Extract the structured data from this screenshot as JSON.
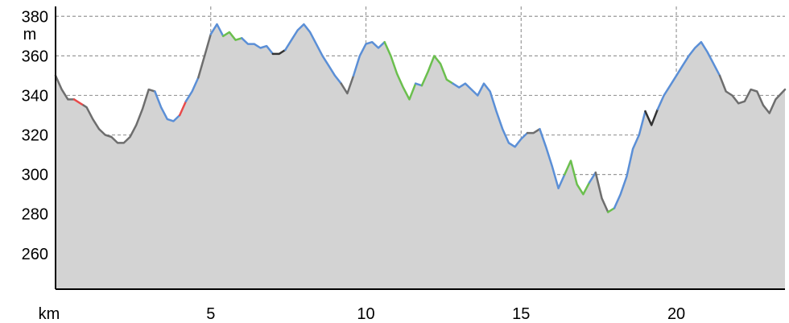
{
  "chart_data": {
    "type": "area",
    "title": "",
    "xlabel": "km",
    "ylabel": "m",
    "xlim": [
      0,
      23.5
    ],
    "ylim": [
      242,
      385
    ],
    "x_ticks": [
      5,
      10,
      15,
      20
    ],
    "x_tick_labels": [
      "5",
      "10",
      "15",
      "20"
    ],
    "y_ticks": [
      260,
      280,
      300,
      320,
      340,
      360,
      380
    ],
    "y_tick_labels": [
      "260",
      "280",
      "300",
      "320",
      "340",
      "360",
      "380"
    ],
    "grid": true,
    "colors": {
      "fill": "#d3d3d3",
      "default_line": "#6e6e6e",
      "blue": "#5b8fd6",
      "green": "#6bbf4e",
      "red": "#e84a4a",
      "dark": "#333333",
      "grid": "#999999"
    },
    "series": [
      {
        "values": [
          [
            0,
            350
          ],
          [
            0.2,
            343
          ],
          [
            0.4,
            338
          ],
          [
            0.6,
            338
          ],
          [
            0.8,
            336
          ],
          [
            1.0,
            334
          ],
          [
            1.2,
            328
          ],
          [
            1.4,
            323
          ],
          [
            1.6,
            320
          ],
          [
            1.8,
            319
          ],
          [
            2.0,
            316
          ],
          [
            2.2,
            316
          ],
          [
            2.4,
            319
          ],
          [
            2.6,
            325
          ],
          [
            2.8,
            333
          ],
          [
            3.0,
            343
          ],
          [
            3.2,
            342
          ],
          [
            3.4,
            334
          ],
          [
            3.6,
            328
          ],
          [
            3.8,
            327
          ],
          [
            4.0,
            330
          ],
          [
            4.2,
            337
          ],
          [
            4.4,
            342
          ],
          [
            4.6,
            349
          ],
          [
            4.8,
            360
          ],
          [
            5.0,
            371
          ],
          [
            5.2,
            376
          ],
          [
            5.4,
            370
          ],
          [
            5.6,
            372
          ],
          [
            5.8,
            368
          ],
          [
            6.0,
            369
          ],
          [
            6.2,
            366
          ],
          [
            6.4,
            366
          ],
          [
            6.6,
            364
          ],
          [
            6.8,
            365
          ],
          [
            7.0,
            361
          ],
          [
            7.2,
            361
          ],
          [
            7.4,
            363
          ],
          [
            7.6,
            368
          ],
          [
            7.8,
            373
          ],
          [
            8.0,
            376
          ],
          [
            8.2,
            372
          ],
          [
            8.4,
            366
          ],
          [
            8.6,
            360
          ],
          [
            8.8,
            355
          ],
          [
            9.0,
            350
          ],
          [
            9.2,
            346
          ],
          [
            9.4,
            341
          ],
          [
            9.6,
            350
          ],
          [
            9.8,
            360
          ],
          [
            10.0,
            366
          ],
          [
            10.2,
            367
          ],
          [
            10.4,
            364
          ],
          [
            10.6,
            367
          ],
          [
            10.8,
            360
          ],
          [
            11.0,
            351
          ],
          [
            11.2,
            344
          ],
          [
            11.4,
            338
          ],
          [
            11.6,
            346
          ],
          [
            11.8,
            345
          ],
          [
            12.0,
            352
          ],
          [
            12.2,
            360
          ],
          [
            12.4,
            356
          ],
          [
            12.6,
            348
          ],
          [
            12.8,
            346
          ],
          [
            13.0,
            344
          ],
          [
            13.2,
            346
          ],
          [
            13.4,
            343
          ],
          [
            13.6,
            340
          ],
          [
            13.8,
            346
          ],
          [
            14.0,
            342
          ],
          [
            14.2,
            332
          ],
          [
            14.4,
            323
          ],
          [
            14.6,
            316
          ],
          [
            14.8,
            314
          ],
          [
            15.0,
            318
          ],
          [
            15.2,
            321
          ],
          [
            15.4,
            321
          ],
          [
            15.6,
            323
          ],
          [
            15.8,
            314
          ],
          [
            16.0,
            304
          ],
          [
            16.2,
            293
          ],
          [
            16.4,
            300
          ],
          [
            16.6,
            307
          ],
          [
            16.8,
            295
          ],
          [
            17.0,
            290
          ],
          [
            17.2,
            296
          ],
          [
            17.4,
            301
          ],
          [
            17.6,
            288
          ],
          [
            17.8,
            281
          ],
          [
            18.0,
            283
          ],
          [
            18.2,
            290
          ],
          [
            18.4,
            299
          ],
          [
            18.6,
            313
          ],
          [
            18.8,
            320
          ],
          [
            19.0,
            332
          ],
          [
            19.2,
            325
          ],
          [
            19.4,
            333
          ],
          [
            19.6,
            340
          ],
          [
            19.8,
            345
          ],
          [
            20.0,
            350
          ],
          [
            20.2,
            355
          ],
          [
            20.4,
            360
          ],
          [
            20.6,
            364
          ],
          [
            20.8,
            367
          ],
          [
            21.0,
            362
          ],
          [
            21.2,
            356
          ],
          [
            21.4,
            350
          ],
          [
            21.6,
            342
          ],
          [
            21.8,
            340
          ],
          [
            22.0,
            336
          ],
          [
            22.2,
            337
          ],
          [
            22.4,
            343
          ],
          [
            22.6,
            342
          ],
          [
            22.8,
            335
          ],
          [
            23.0,
            331
          ],
          [
            23.2,
            338
          ],
          [
            23.5,
            343
          ]
        ],
        "segments": [
          {
            "from": 0.0,
            "to": 0.6,
            "color": "#6e6e6e"
          },
          {
            "from": 0.6,
            "to": 0.9,
            "color": "#e84a4a"
          },
          {
            "from": 0.9,
            "to": 3.2,
            "color": "#6e6e6e"
          },
          {
            "from": 3.2,
            "to": 4.0,
            "color": "#5b8fd6"
          },
          {
            "from": 4.0,
            "to": 4.2,
            "color": "#e84a4a"
          },
          {
            "from": 4.2,
            "to": 4.6,
            "color": "#5b8fd6"
          },
          {
            "from": 4.6,
            "to": 5.0,
            "color": "#6e6e6e"
          },
          {
            "from": 5.0,
            "to": 5.4,
            "color": "#5b8fd6"
          },
          {
            "from": 5.4,
            "to": 6.0,
            "color": "#6bbf4e"
          },
          {
            "from": 6.0,
            "to": 7.0,
            "color": "#5b8fd6"
          },
          {
            "from": 7.0,
            "to": 7.4,
            "color": "#333333"
          },
          {
            "from": 7.4,
            "to": 9.2,
            "color": "#5b8fd6"
          },
          {
            "from": 9.2,
            "to": 9.6,
            "color": "#6e6e6e"
          },
          {
            "from": 9.6,
            "to": 10.6,
            "color": "#5b8fd6"
          },
          {
            "from": 10.6,
            "to": 11.6,
            "color": "#6bbf4e"
          },
          {
            "from": 11.6,
            "to": 11.8,
            "color": "#5b8fd6"
          },
          {
            "from": 11.8,
            "to": 12.8,
            "color": "#6bbf4e"
          },
          {
            "from": 12.8,
            "to": 15.2,
            "color": "#5b8fd6"
          },
          {
            "from": 15.2,
            "to": 15.6,
            "color": "#6e6e6e"
          },
          {
            "from": 15.6,
            "to": 16.4,
            "color": "#5b8fd6"
          },
          {
            "from": 16.4,
            "to": 17.2,
            "color": "#6bbf4e"
          },
          {
            "from": 17.2,
            "to": 17.4,
            "color": "#5b8fd6"
          },
          {
            "from": 17.4,
            "to": 17.8,
            "color": "#6e6e6e"
          },
          {
            "from": 17.8,
            "to": 18.0,
            "color": "#6bbf4e"
          },
          {
            "from": 18.0,
            "to": 19.0,
            "color": "#5b8fd6"
          },
          {
            "from": 19.0,
            "to": 19.4,
            "color": "#333333"
          },
          {
            "from": 19.4,
            "to": 21.4,
            "color": "#5b8fd6"
          },
          {
            "from": 21.4,
            "to": 23.5,
            "color": "#6e6e6e"
          }
        ]
      }
    ]
  }
}
